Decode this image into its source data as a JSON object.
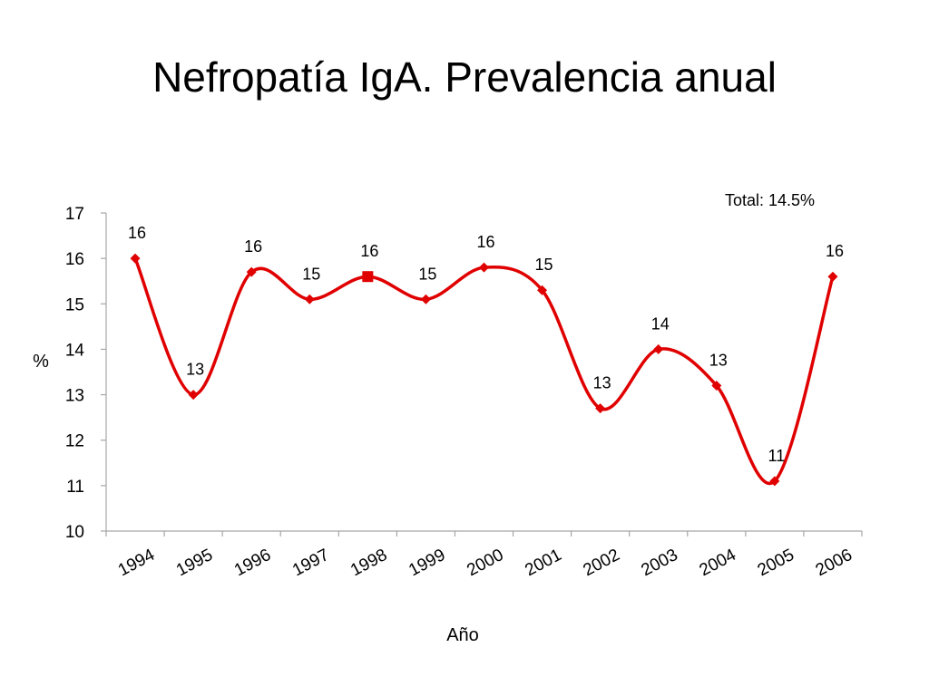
{
  "title": "Nefropatía IgA. Prevalencia anual",
  "colors": {
    "series": "#e00000",
    "axis": "#a6a6a6"
  },
  "chart_data": {
    "type": "line",
    "smooth": true,
    "title": "Nefropatía IgA. Prevalencia anual",
    "xlabel": "Año",
    "ylabel": "%",
    "ylim": [
      10,
      17
    ],
    "yticks": [
      "10",
      "11",
      "12",
      "13",
      "14",
      "15",
      "16",
      "17"
    ],
    "grid": false,
    "categories": [
      "1994",
      "1995",
      "1996",
      "1997",
      "1998",
      "1999",
      "2000",
      "2001",
      "2002",
      "2003",
      "2004",
      "2005",
      "2006"
    ],
    "series": [
      {
        "values": [
          16.0,
          13.0,
          15.7,
          15.1,
          15.6,
          15.1,
          15.8,
          15.3,
          12.7,
          14.0,
          13.2,
          11.1,
          15.6
        ],
        "data_labels": [
          "16",
          "13",
          "16",
          "15",
          "16",
          "15",
          "16",
          "15",
          "13",
          "14",
          "13",
          "11",
          "16"
        ],
        "marker": "diamond",
        "highlight_marker": {
          "index": 4,
          "shape": "square"
        }
      }
    ],
    "annotation": "Total: 14.5%"
  }
}
